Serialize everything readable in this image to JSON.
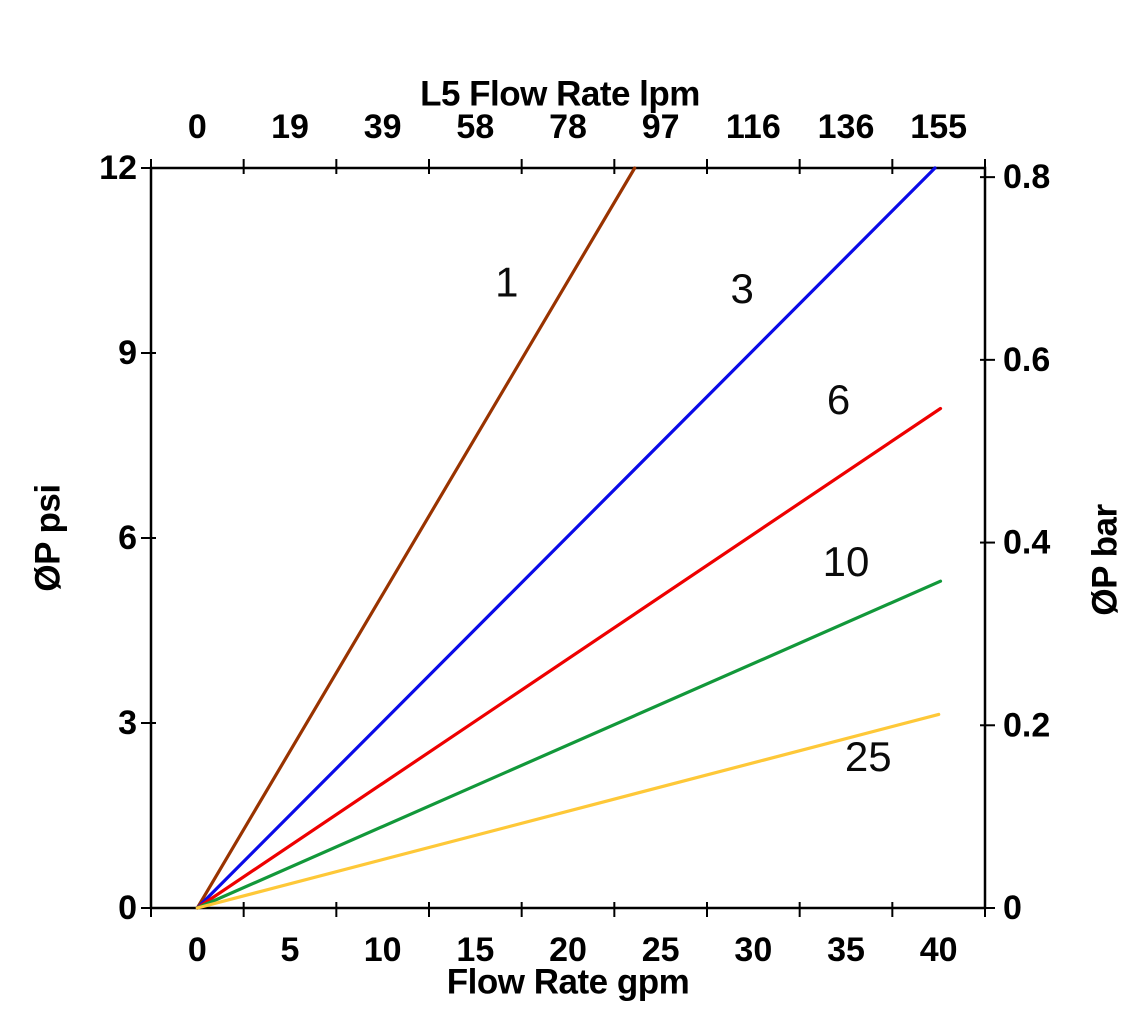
{
  "chart_data": {
    "type": "line",
    "description": "Pressure drop vs flow rate curves for L5 filter elements; curve labels are micron ratings",
    "grid": false,
    "legend": "inline-labels",
    "x_axis_top": {
      "label": "L5 Flow Rate lpm",
      "tick_labels": [
        "0",
        "19",
        "39",
        "58",
        "78",
        "97",
        "116",
        "136",
        "155"
      ]
    },
    "x_axis_bottom": {
      "label": "Flow Rate gpm",
      "tick_labels": [
        "0",
        "5",
        "10",
        "15",
        "20",
        "25",
        "30",
        "35",
        "40"
      ],
      "gpm_per_division": 5,
      "range": [
        0,
        40
      ]
    },
    "y_axis_left": {
      "label": "ØP psi",
      "tick_labels": [
        "0",
        "3",
        "6",
        "9",
        "12"
      ],
      "range": [
        0,
        12
      ]
    },
    "y_axis_right": {
      "label": "ØP bar",
      "tick_labels": [
        "0",
        "0.2",
        "0.4",
        "0.6",
        "0.8"
      ],
      "range": [
        0,
        0.81
      ]
    },
    "series": [
      {
        "name": "1",
        "color": "#993300",
        "points": [
          [
            0,
            0
          ],
          [
            23.6,
            12
          ]
        ],
        "label_pos": [
          16.7,
          10.15
        ]
      },
      {
        "name": "3",
        "color": "#0a0ae8",
        "points": [
          [
            0,
            0
          ],
          [
            39.8,
            12
          ]
        ],
        "label_pos": [
          29.4,
          10.05
        ]
      },
      {
        "name": "6",
        "color": "#ee0000",
        "points": [
          [
            0,
            0
          ],
          [
            40.1,
            8.1
          ]
        ],
        "label_pos": [
          34.6,
          8.25
        ]
      },
      {
        "name": "10",
        "color": "#12983a",
        "points": [
          [
            0,
            0
          ],
          [
            40.1,
            5.3
          ]
        ],
        "label_pos": [
          35.0,
          5.62
        ]
      },
      {
        "name": "25",
        "color": "#fec838",
        "points": [
          [
            0,
            0
          ],
          [
            40.0,
            3.14
          ]
        ],
        "label_pos": [
          36.2,
          2.46
        ]
      }
    ]
  }
}
